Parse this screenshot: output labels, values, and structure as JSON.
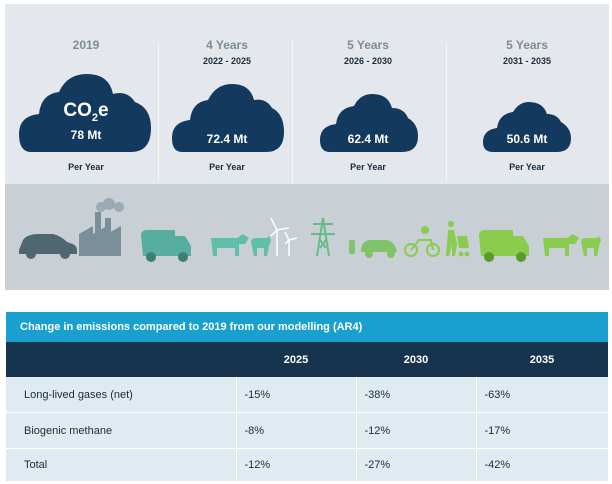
{
  "infographic": {
    "periods": [
      {
        "year": "2019",
        "range": "",
        "amount": "78 Mt",
        "per": "Per Year",
        "co2_prefix": "CO",
        "co2_sub": "2",
        "co2_suffix": "e"
      },
      {
        "year": "4 Years",
        "range": "2022 - 2025",
        "amount": "72.4 Mt",
        "per": "Per Year"
      },
      {
        "year": "5 Years",
        "range": "2026 - 2030",
        "amount": "62.4 Mt",
        "per": "Per Year"
      },
      {
        "year": "5 Years",
        "range": "2031 - 2035",
        "amount": "50.6 Mt",
        "per": "Per Year"
      }
    ],
    "cloud_color": "#133a5e",
    "icon_colors": {
      "car": "#4f6673",
      "factory": "#7a8f9a",
      "truck": "#57ad9e",
      "cattle": "#5fbfa8",
      "wind": "#ffffff",
      "pylon": "#66bb88",
      "ev": "#7fc46a",
      "green": "#8acc4e"
    },
    "icons": [
      "car-icon",
      "factory-icon",
      "garbage-truck-icon",
      "cattle-icon",
      "sheep-icon",
      "wind-turbine-icon",
      "power-pylon-icon",
      "electric-car-icon",
      "cyclist-icon",
      "walker-icon",
      "recycling-truck-icon",
      "cattle-icon",
      "sheep-icon"
    ]
  },
  "table": {
    "title": "Change in emissions compared to 2019 from our modelling (AR4)",
    "headers": [
      "",
      "2025",
      "2030",
      "2035"
    ],
    "rows": [
      [
        "Long-lived gases (net)",
        "-15%",
        "-38%",
        "-63%"
      ],
      [
        "Biogenic methane",
        "-8%",
        "-12%",
        "-17%"
      ],
      [
        "Total",
        "-12%",
        "-27%",
        "-42%"
      ]
    ],
    "header_color": "#16344d",
    "title_color": "#1aa0cf",
    "row_color": "#dfeaf1"
  }
}
